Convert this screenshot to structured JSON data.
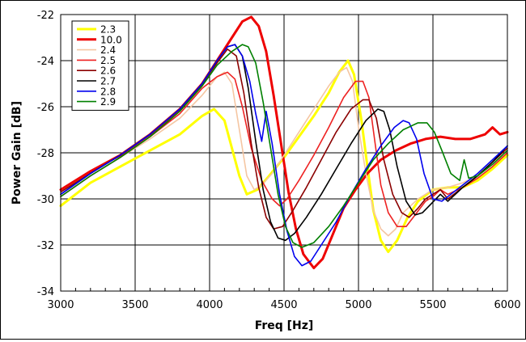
{
  "chart_data": {
    "type": "line",
    "xlabel": "Freq [Hz]",
    "ylabel": "Power Gain [dB]",
    "xlim": [
      3000,
      6000
    ],
    "ylim": [
      -34,
      -22
    ],
    "xticks": [
      3000,
      3500,
      4000,
      4500,
      5000,
      5500,
      6000
    ],
    "yticks": [
      -34,
      -32,
      -30,
      -28,
      -26,
      -24,
      -22
    ],
    "grid": true,
    "legend_position": "top-left",
    "series": [
      {
        "name": "2.3",
        "color": "#ffff00",
        "points": [
          [
            3000,
            -30.3
          ],
          [
            3200,
            -29.3
          ],
          [
            3400,
            -28.6
          ],
          [
            3600,
            -27.9
          ],
          [
            3800,
            -27.2
          ],
          [
            3950,
            -26.4
          ],
          [
            4030,
            -26.1
          ],
          [
            4100,
            -26.6
          ],
          [
            4150,
            -27.8
          ],
          [
            4200,
            -29.0
          ],
          [
            4250,
            -29.8
          ],
          [
            4320,
            -29.6
          ],
          [
            4400,
            -29.0
          ],
          [
            4500,
            -28.2
          ],
          [
            4600,
            -27.3
          ],
          [
            4700,
            -26.4
          ],
          [
            4800,
            -25.4
          ],
          [
            4870,
            -24.5
          ],
          [
            4930,
            -24.0
          ],
          [
            4970,
            -24.6
          ],
          [
            5020,
            -26.6
          ],
          [
            5060,
            -28.6
          ],
          [
            5100,
            -30.5
          ],
          [
            5150,
            -31.8
          ],
          [
            5200,
            -32.3
          ],
          [
            5260,
            -31.8
          ],
          [
            5330,
            -30.8
          ],
          [
            5400,
            -30.1
          ],
          [
            5500,
            -29.6
          ],
          [
            5600,
            -29.5
          ],
          [
            5700,
            -29.5
          ],
          [
            5800,
            -29.2
          ],
          [
            5900,
            -28.7
          ],
          [
            6000,
            -28.1
          ]
        ]
      },
      {
        "name": "10.0",
        "color": "#ee0000",
        "points": [
          [
            3000,
            -29.6
          ],
          [
            3200,
            -28.8
          ],
          [
            3400,
            -28.1
          ],
          [
            3600,
            -27.2
          ],
          [
            3800,
            -26.1
          ],
          [
            3950,
            -25.0
          ],
          [
            4050,
            -24.0
          ],
          [
            4150,
            -23.0
          ],
          [
            4220,
            -22.3
          ],
          [
            4280,
            -22.1
          ],
          [
            4330,
            -22.5
          ],
          [
            4380,
            -23.6
          ],
          [
            4430,
            -25.5
          ],
          [
            4480,
            -27.6
          ],
          [
            4530,
            -29.7
          ],
          [
            4580,
            -31.3
          ],
          [
            4630,
            -32.4
          ],
          [
            4700,
            -33.0
          ],
          [
            4760,
            -32.6
          ],
          [
            4830,
            -31.5
          ],
          [
            4900,
            -30.4
          ],
          [
            4980,
            -29.6
          ],
          [
            5060,
            -28.9
          ],
          [
            5150,
            -28.3
          ],
          [
            5250,
            -27.9
          ],
          [
            5350,
            -27.6
          ],
          [
            5450,
            -27.4
          ],
          [
            5550,
            -27.3
          ],
          [
            5650,
            -27.4
          ],
          [
            5750,
            -27.4
          ],
          [
            5850,
            -27.2
          ],
          [
            5900,
            -26.9
          ],
          [
            5950,
            -27.2
          ],
          [
            6000,
            -27.1
          ]
        ]
      },
      {
        "name": "2.4",
        "color": "#f5c6a2",
        "points": [
          [
            3000,
            -29.9
          ],
          [
            3200,
            -29.0
          ],
          [
            3400,
            -28.2
          ],
          [
            3600,
            -27.4
          ],
          [
            3800,
            -26.5
          ],
          [
            3950,
            -25.5
          ],
          [
            4050,
            -24.7
          ],
          [
            4100,
            -24.5
          ],
          [
            4150,
            -25.0
          ],
          [
            4200,
            -27.0
          ],
          [
            4250,
            -29.0
          ],
          [
            4300,
            -29.6
          ],
          [
            4350,
            -29.4
          ],
          [
            4420,
            -28.9
          ],
          [
            4500,
            -28.1
          ],
          [
            4600,
            -27.1
          ],
          [
            4700,
            -26.1
          ],
          [
            4800,
            -25.1
          ],
          [
            4870,
            -24.5
          ],
          [
            4920,
            -24.3
          ],
          [
            4960,
            -24.9
          ],
          [
            5000,
            -26.9
          ],
          [
            5050,
            -28.9
          ],
          [
            5100,
            -30.5
          ],
          [
            5150,
            -31.3
          ],
          [
            5200,
            -31.6
          ],
          [
            5250,
            -31.3
          ],
          [
            5300,
            -30.6
          ],
          [
            5400,
            -30.0
          ],
          [
            5500,
            -29.6
          ],
          [
            5600,
            -29.5
          ],
          [
            5700,
            -29.3
          ],
          [
            5800,
            -29.0
          ],
          [
            5900,
            -28.5
          ],
          [
            6000,
            -28.0
          ]
        ]
      },
      {
        "name": "2.5",
        "color": "#ee2222",
        "points": [
          [
            3000,
            -29.9
          ],
          [
            3200,
            -29.0
          ],
          [
            3400,
            -28.2
          ],
          [
            3600,
            -27.3
          ],
          [
            3800,
            -26.3
          ],
          [
            3950,
            -25.2
          ],
          [
            4050,
            -24.7
          ],
          [
            4120,
            -24.5
          ],
          [
            4170,
            -24.8
          ],
          [
            4220,
            -26.0
          ],
          [
            4280,
            -27.8
          ],
          [
            4350,
            -29.2
          ],
          [
            4420,
            -30.0
          ],
          [
            4470,
            -30.3
          ],
          [
            4520,
            -30.0
          ],
          [
            4600,
            -29.2
          ],
          [
            4700,
            -28.1
          ],
          [
            4800,
            -26.9
          ],
          [
            4900,
            -25.6
          ],
          [
            4980,
            -24.9
          ],
          [
            5030,
            -24.9
          ],
          [
            5070,
            -25.6
          ],
          [
            5110,
            -27.5
          ],
          [
            5150,
            -29.4
          ],
          [
            5200,
            -30.6
          ],
          [
            5260,
            -31.2
          ],
          [
            5320,
            -31.2
          ],
          [
            5380,
            -30.7
          ],
          [
            5450,
            -30.1
          ],
          [
            5500,
            -29.9
          ],
          [
            5550,
            -29.6
          ],
          [
            5600,
            -29.8
          ],
          [
            5700,
            -29.5
          ],
          [
            5800,
            -29.1
          ],
          [
            5900,
            -28.6
          ],
          [
            6000,
            -28.0
          ]
        ]
      },
      {
        "name": "2.6",
        "color": "#8b0000",
        "points": [
          [
            3000,
            -29.7
          ],
          [
            3200,
            -28.9
          ],
          [
            3400,
            -28.1
          ],
          [
            3600,
            -27.2
          ],
          [
            3800,
            -26.1
          ],
          [
            3950,
            -25.0
          ],
          [
            4050,
            -24.1
          ],
          [
            4120,
            -23.5
          ],
          [
            4180,
            -23.8
          ],
          [
            4230,
            -25.4
          ],
          [
            4280,
            -27.6
          ],
          [
            4330,
            -29.5
          ],
          [
            4380,
            -30.8
          ],
          [
            4430,
            -31.3
          ],
          [
            4490,
            -31.2
          ],
          [
            4560,
            -30.5
          ],
          [
            4650,
            -29.5
          ],
          [
            4750,
            -28.3
          ],
          [
            4850,
            -27.1
          ],
          [
            4950,
            -26.1
          ],
          [
            5030,
            -25.7
          ],
          [
            5070,
            -25.7
          ],
          [
            5120,
            -26.5
          ],
          [
            5170,
            -28.3
          ],
          [
            5230,
            -29.8
          ],
          [
            5290,
            -30.6
          ],
          [
            5340,
            -30.8
          ],
          [
            5400,
            -30.4
          ],
          [
            5450,
            -30.0
          ],
          [
            5550,
            -29.6
          ],
          [
            5600,
            -30.0
          ],
          [
            5700,
            -29.5
          ],
          [
            5800,
            -29.0
          ],
          [
            5900,
            -28.4
          ],
          [
            6000,
            -27.8
          ]
        ]
      },
      {
        "name": "2.7",
        "color": "#000000",
        "points": [
          [
            3000,
            -29.8
          ],
          [
            3200,
            -28.9
          ],
          [
            3400,
            -28.1
          ],
          [
            3600,
            -27.2
          ],
          [
            3800,
            -26.1
          ],
          [
            3950,
            -25.0
          ],
          [
            4050,
            -24.0
          ],
          [
            4120,
            -23.4
          ],
          [
            4170,
            -23.3
          ],
          [
            4220,
            -23.8
          ],
          [
            4260,
            -25.2
          ],
          [
            4310,
            -27.5
          ],
          [
            4360,
            -29.6
          ],
          [
            4410,
            -31.0
          ],
          [
            4460,
            -31.7
          ],
          [
            4510,
            -31.8
          ],
          [
            4570,
            -31.5
          ],
          [
            4650,
            -30.8
          ],
          [
            4750,
            -29.8
          ],
          [
            4850,
            -28.7
          ],
          [
            4950,
            -27.6
          ],
          [
            5050,
            -26.6
          ],
          [
            5130,
            -26.1
          ],
          [
            5170,
            -26.2
          ],
          [
            5210,
            -27.0
          ],
          [
            5260,
            -28.6
          ],
          [
            5320,
            -30.1
          ],
          [
            5380,
            -30.7
          ],
          [
            5430,
            -30.6
          ],
          [
            5490,
            -30.2
          ],
          [
            5550,
            -29.8
          ],
          [
            5600,
            -30.1
          ],
          [
            5700,
            -29.5
          ],
          [
            5800,
            -29.0
          ],
          [
            5900,
            -28.4
          ],
          [
            6000,
            -27.7
          ]
        ]
      },
      {
        "name": "2.8",
        "color": "#0000ee",
        "points": [
          [
            3000,
            -29.8
          ],
          [
            3200,
            -28.9
          ],
          [
            3400,
            -28.1
          ],
          [
            3600,
            -27.2
          ],
          [
            3800,
            -26.1
          ],
          [
            3950,
            -25.0
          ],
          [
            4050,
            -24.0
          ],
          [
            4120,
            -23.4
          ],
          [
            4170,
            -23.3
          ],
          [
            4220,
            -23.8
          ],
          [
            4270,
            -24.9
          ],
          [
            4310,
            -26.3
          ],
          [
            4350,
            -27.5
          ],
          [
            4380,
            -26.2
          ],
          [
            4420,
            -27.6
          ],
          [
            4470,
            -29.8
          ],
          [
            4520,
            -31.4
          ],
          [
            4570,
            -32.5
          ],
          [
            4620,
            -32.9
          ],
          [
            4680,
            -32.7
          ],
          [
            4750,
            -32.0
          ],
          [
            4850,
            -31.0
          ],
          [
            4950,
            -29.8
          ],
          [
            5050,
            -28.7
          ],
          [
            5150,
            -27.7
          ],
          [
            5240,
            -26.9
          ],
          [
            5300,
            -26.6
          ],
          [
            5340,
            -26.7
          ],
          [
            5390,
            -27.4
          ],
          [
            5440,
            -28.9
          ],
          [
            5500,
            -30.0
          ],
          [
            5560,
            -30.1
          ],
          [
            5620,
            -29.8
          ],
          [
            5700,
            -29.4
          ],
          [
            5800,
            -28.9
          ],
          [
            5900,
            -28.3
          ],
          [
            6000,
            -27.7
          ]
        ]
      },
      {
        "name": "2.9",
        "color": "#008000",
        "points": [
          [
            3000,
            -29.9
          ],
          [
            3200,
            -29.0
          ],
          [
            3400,
            -28.2
          ],
          [
            3600,
            -27.3
          ],
          [
            3800,
            -26.2
          ],
          [
            3950,
            -25.1
          ],
          [
            4050,
            -24.2
          ],
          [
            4150,
            -23.6
          ],
          [
            4220,
            -23.3
          ],
          [
            4260,
            -23.4
          ],
          [
            4310,
            -24.1
          ],
          [
            4360,
            -25.8
          ],
          [
            4410,
            -27.8
          ],
          [
            4460,
            -29.8
          ],
          [
            4510,
            -31.2
          ],
          [
            4560,
            -31.9
          ],
          [
            4620,
            -32.1
          ],
          [
            4700,
            -31.9
          ],
          [
            4800,
            -31.2
          ],
          [
            4900,
            -30.3
          ],
          [
            5000,
            -29.3
          ],
          [
            5100,
            -28.3
          ],
          [
            5200,
            -27.6
          ],
          [
            5300,
            -27.0
          ],
          [
            5400,
            -26.7
          ],
          [
            5460,
            -26.7
          ],
          [
            5510,
            -27.1
          ],
          [
            5560,
            -27.9
          ],
          [
            5620,
            -28.9
          ],
          [
            5680,
            -29.2
          ],
          [
            5710,
            -28.3
          ],
          [
            5740,
            -29.1
          ],
          [
            5800,
            -29.0
          ],
          [
            5900,
            -28.5
          ],
          [
            6000,
            -27.9
          ]
        ]
      }
    ]
  }
}
